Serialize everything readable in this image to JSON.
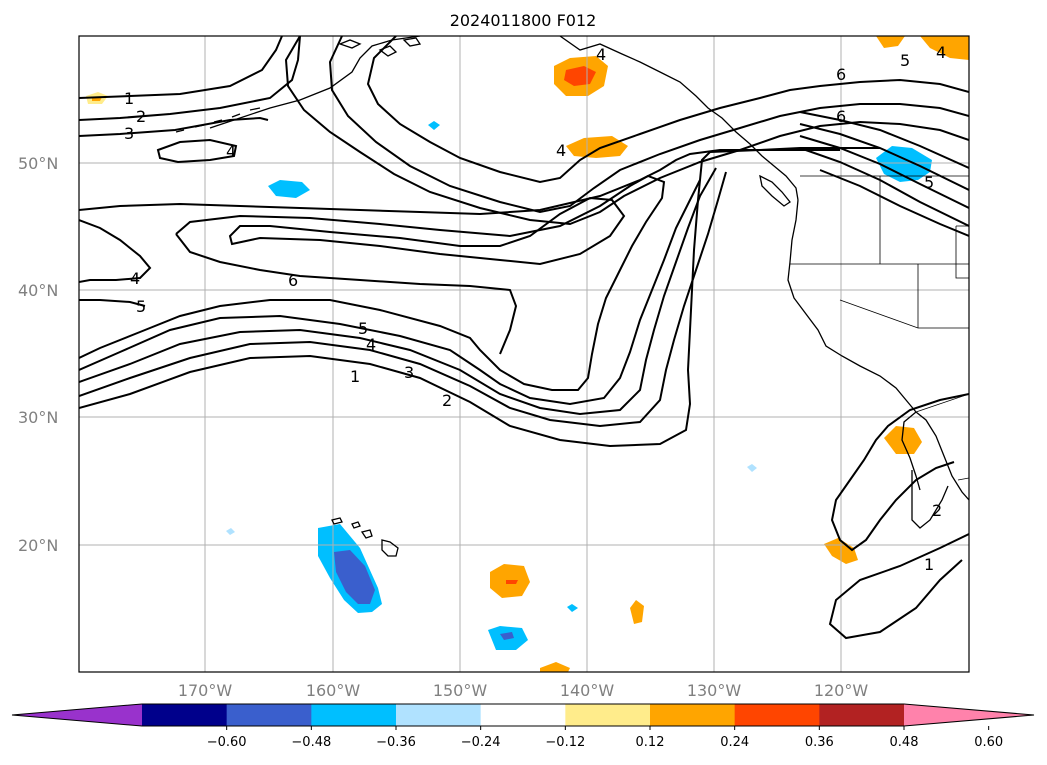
{
  "title": "2024011800 F012",
  "map": {
    "lat_labels": [
      "50°N",
      "40°N",
      "30°N",
      "20°N"
    ],
    "lon_labels": [
      "170°W",
      "160°W",
      "150°W",
      "140°W",
      "130°W",
      "120°W"
    ],
    "contour_labels": [
      "1",
      "2",
      "3",
      "4",
      "5",
      "6"
    ],
    "colors": {
      "gridline": "#b0b0b0",
      "contour": "#000000",
      "coast": "#000000"
    }
  },
  "colorbar": {
    "ticks": [
      "−0.60",
      "−0.48",
      "−0.36",
      "−0.24",
      "−0.12",
      "0.12",
      "0.24",
      "0.36",
      "0.48",
      "0.60"
    ],
    "colors": [
      "#9932cc",
      "#00008b",
      "#3a5fcd",
      "#00bfff",
      "#b0e2ff",
      "#ffffff",
      "#ffec8b",
      "#ffa500",
      "#ff4500",
      "#b22222",
      "#ff82ab"
    ]
  }
}
